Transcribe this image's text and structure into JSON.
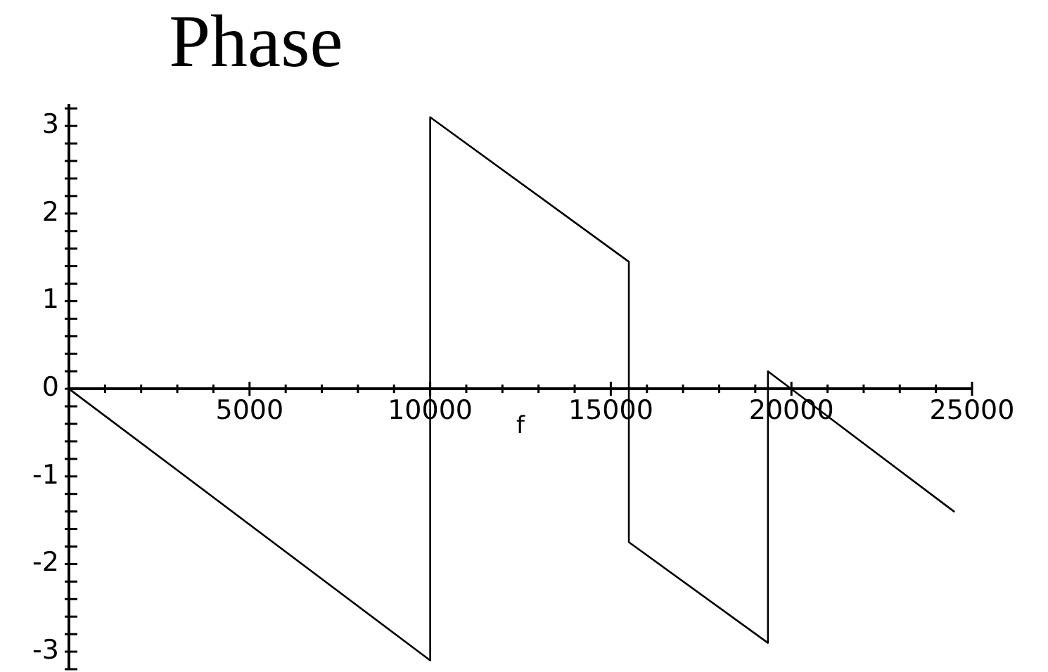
{
  "chart_data": {
    "type": "line",
    "title": "Phase",
    "xlabel": "f",
    "x": [
      0,
      10000,
      10000,
      15500,
      15500,
      19350,
      19350,
      24500
    ],
    "values": [
      0,
      -3.1,
      3.1,
      1.45,
      -1.75,
      -2.9,
      0.2,
      -1.4
    ],
    "color": "#000000",
    "xlim": [
      0,
      25000
    ],
    "xticks": [
      {
        "value": 1000,
        "label": null
      },
      {
        "value": 2000,
        "label": null
      },
      {
        "value": 3000,
        "label": null
      },
      {
        "value": 4000,
        "label": null
      },
      5000,
      {
        "value": 6000,
        "label": null
      },
      {
        "value": 7000,
        "label": null
      },
      {
        "value": 8000,
        "label": null
      },
      {
        "value": 9000,
        "label": null
      },
      10000,
      {
        "value": 11000,
        "label": null
      },
      {
        "value": 12000,
        "label": null
      },
      {
        "value": 13000,
        "label": null
      },
      {
        "value": 14000,
        "label": null
      },
      15000,
      {
        "value": 16000,
        "label": null
      },
      {
        "value": 17000,
        "label": null
      },
      {
        "value": 18000,
        "label": null
      },
      {
        "value": 19000,
        "label": null
      },
      20000,
      {
        "value": 21000,
        "label": null
      },
      {
        "value": 22000,
        "label": null
      },
      {
        "value": 23000,
        "label": null
      },
      {
        "value": 24000,
        "label": null
      },
      25000
    ],
    "ylim": [
      -3.2,
      3.25
    ],
    "yticks": [
      {
        "value": -3.2,
        "label": null
      },
      -3,
      {
        "value": -2.8,
        "label": null
      },
      {
        "value": -2.6,
        "label": null
      },
      {
        "value": -2.4,
        "label": null
      },
      {
        "value": -2.2,
        "label": null
      },
      -2,
      {
        "value": -1.8,
        "label": null
      },
      {
        "value": -1.6,
        "label": null
      },
      {
        "value": -1.4,
        "label": null
      },
      {
        "value": -1.2,
        "label": null
      },
      -1,
      {
        "value": -0.8,
        "label": null
      },
      {
        "value": -0.6,
        "label": null
      },
      {
        "value": -0.4,
        "label": null
      },
      {
        "value": -0.2,
        "label": null
      },
      0,
      {
        "value": 0.2,
        "label": null
      },
      {
        "value": 0.4,
        "label": null
      },
      {
        "value": 0.6,
        "label": null
      },
      {
        "value": 0.8,
        "label": null
      },
      1,
      {
        "value": 1.2,
        "label": null
      },
      {
        "value": 1.4,
        "label": null
      },
      {
        "value": 1.6,
        "label": null
      },
      {
        "value": 1.8,
        "label": null
      },
      2,
      {
        "value": 2.2,
        "label": null
      },
      {
        "value": 2.4,
        "label": null
      },
      {
        "value": 2.6,
        "label": null
      },
      {
        "value": 2.8,
        "label": null
      },
      3,
      {
        "value": 3.2,
        "label": null
      }
    ]
  }
}
